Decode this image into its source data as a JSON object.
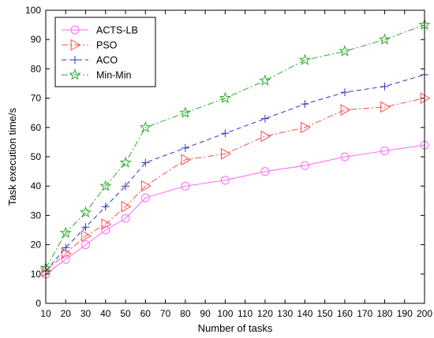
{
  "chart_data": {
    "type": "line",
    "title": "",
    "xlabel": "Number of tasks",
    "ylabel": "Task execution time/s",
    "x": [
      10,
      20,
      30,
      40,
      50,
      60,
      80,
      100,
      120,
      140,
      160,
      180,
      200
    ],
    "x_tick_labels": [
      "10",
      "20",
      "30",
      "40",
      "50",
      "60",
      "70",
      "80",
      "90",
      "100",
      "110",
      "120",
      "130",
      "140",
      "150",
      "160",
      "170",
      "180",
      "190",
      "200"
    ],
    "y_tick_labels": [
      "0",
      "10",
      "20",
      "30",
      "40",
      "50",
      "60",
      "70",
      "80",
      "90",
      "100"
    ],
    "ylim": [
      0,
      100
    ],
    "grid": false,
    "legend_position": "top-left",
    "series": [
      {
        "name": "ACTS-LB",
        "color": "#ff66ff",
        "marker": "circle",
        "dash": "solid",
        "values": [
          10,
          15,
          20,
          25,
          29,
          36,
          40,
          42,
          45,
          47,
          50,
          52,
          54
        ]
      },
      {
        "name": "PSO",
        "color": "#ff4c4c",
        "marker": "triangle-right",
        "dash": "dashdot",
        "values": [
          11,
          17,
          23,
          27,
          33,
          40,
          49,
          51,
          57,
          60,
          66,
          67,
          70
        ]
      },
      {
        "name": "ACO",
        "color": "#3333cc",
        "marker": "plus",
        "dash": "dashed",
        "values": [
          11,
          19,
          26,
          33,
          40,
          48,
          53,
          58,
          63,
          68,
          72,
          74,
          78
        ]
      },
      {
        "name": "Min-Min",
        "color": "#33aa33",
        "marker": "pentagram",
        "dash": "dashdot",
        "values": [
          12,
          24,
          31,
          40,
          48,
          60,
          65,
          70,
          76,
          83,
          86,
          90,
          95
        ]
      }
    ]
  }
}
